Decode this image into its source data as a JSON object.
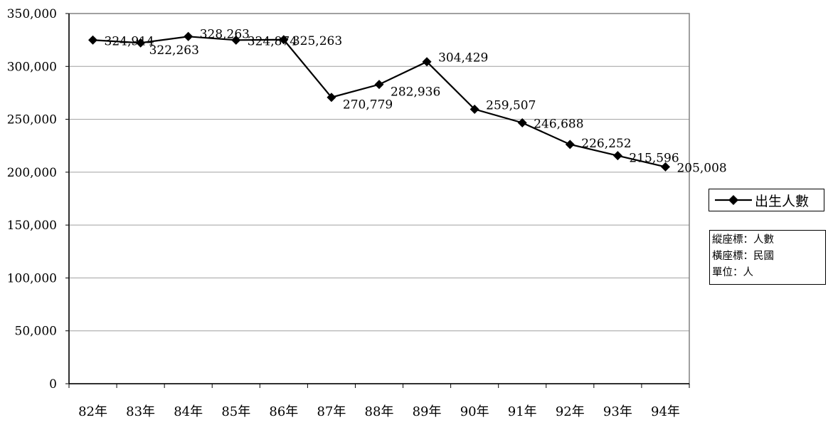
{
  "chart_data": {
    "type": "line",
    "categories": [
      "82年",
      "83年",
      "84年",
      "85年",
      "86年",
      "87年",
      "88年",
      "89年",
      "90年",
      "91年",
      "92年",
      "93年",
      "94年"
    ],
    "series": [
      {
        "name": "出生人數",
        "values": [
          324914,
          322263,
          328263,
          324874,
          325263,
          270779,
          282936,
          304429,
          259507,
          246688,
          226252,
          215596,
          205008
        ],
        "labels": [
          "324,914",
          "322,263",
          "328,263",
          "324,874",
          "325,263",
          "270,779",
          "282,936",
          "304,429",
          "259,507",
          "246,688",
          "226,252",
          "215,596",
          "205,008"
        ],
        "color": "#000000",
        "marker": "diamond"
      }
    ],
    "ylim": [
      0,
      350000
    ],
    "yticks": [
      0,
      50000,
      100000,
      150000,
      200000,
      250000,
      300000,
      350000
    ],
    "ytick_labels": [
      "0",
      "50,000",
      "100,000",
      "150,000",
      "200,000",
      "250,000",
      "300,000",
      "350,000"
    ],
    "grid": true,
    "legend_position": "right",
    "title": "",
    "xlabel": "",
    "ylabel": ""
  },
  "legend": {
    "label": "出生人數"
  },
  "note": {
    "line1": "縱座標：人數",
    "line2": "橫座標：民國",
    "line3": "單位：人"
  }
}
